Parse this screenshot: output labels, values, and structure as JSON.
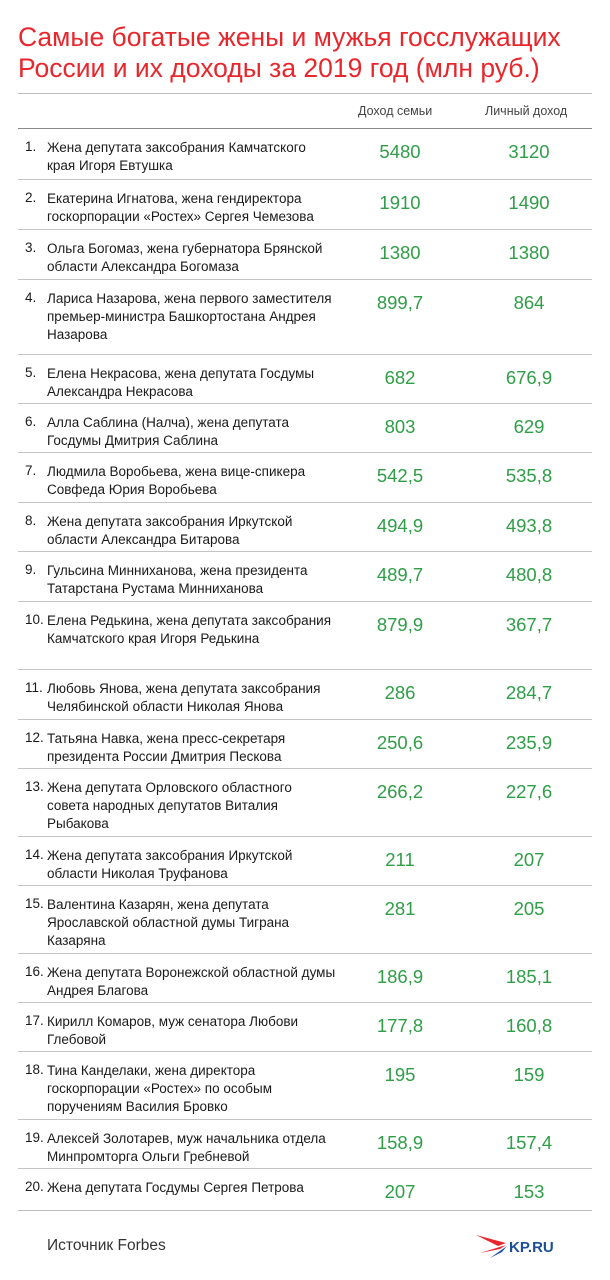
{
  "title": {
    "line1": "Самые богатые жены и мужья госслужащих",
    "line2": "России и их доходы за 2019 год (млн руб.)"
  },
  "columns": {
    "family": "Доход семьи",
    "personal": "Личный доход"
  },
  "source": "Источник Forbes",
  "logo_text": "KP.RU",
  "colors": {
    "title": "#e8272d",
    "values": "#2f9e47",
    "logo_red": "#e8272d",
    "logo_blue": "#1b4d9b"
  },
  "chart_data": {
    "type": "table",
    "title": "Самые богатые жены и мужья госслужащих России и их доходы за 2019 год (млн руб.)",
    "columns": [
      "Доход семьи",
      "Личный доход"
    ],
    "rows": [
      {
        "rank": "1.",
        "name": "Жена депутата заксобрания Камчатского края Игоря Евтушка",
        "family": "5480",
        "personal": "3120"
      },
      {
        "rank": "2.",
        "name": "Екатерина Игнатова, жена гендиректора госкорпорации «Ростех» Сергея Чемезова",
        "family": "1910",
        "personal": "1490"
      },
      {
        "rank": "3.",
        "name": "Ольга Богомаз, жена губернатора Брянской области Александра Богомаза",
        "family": "1380",
        "personal": "1380"
      },
      {
        "rank": "4.",
        "name": "Лариса Назарова, жена первого заместителя премьер-министра Башкортостана Андрея Назарова",
        "family": "899,7",
        "personal": "864"
      },
      {
        "rank": "5.",
        "name": "Елена Некрасова, жена депутата Госдумы Александра Некрасова",
        "family": "682",
        "personal": "676,9"
      },
      {
        "rank": "6.",
        "name": "Алла Саблина (Налча), жена депутата Госдумы Дмитрия Саблина",
        "family": "803",
        "personal": "629"
      },
      {
        "rank": "7.",
        "name": "Людмила Воробьева, жена вице-спикера Совфеда Юрия Воробьева",
        "family": "542,5",
        "personal": "535,8"
      },
      {
        "rank": "8.",
        "name": "Жена депутата заксобрания Иркутской области Александра Битарова",
        "family": "494,9",
        "personal": "493,8"
      },
      {
        "rank": "9.",
        "name": "Гульсина Минниханова, жена президента Татарстана Рустама Минниханова",
        "family": "489,7",
        "personal": "480,8"
      },
      {
        "rank": "10.",
        "name": "Елена Редькина, жена депутата заксобрания Камчатского края Игоря Редькина",
        "family": "879,9",
        "personal": "367,7"
      },
      {
        "rank": "11.",
        "name": "Любовь Янова, жена депутата заксобрания Челябинской области Николая Янова",
        "family": "286",
        "personal": "284,7"
      },
      {
        "rank": "12.",
        "name": "Татьяна Навка, жена пресс-секретаря президента России Дмитрия Пескова",
        "family": "250,6",
        "personal": "235,9"
      },
      {
        "rank": "13.",
        "name": "Жена депутата Орловского областного совета народных депутатов Виталия Рыбакова",
        "family": "266,2",
        "personal": "227,6"
      },
      {
        "rank": "14.",
        "name": "Жена депутата заксобрания Иркутской области Николая Труфанова",
        "family": "211",
        "personal": "207"
      },
      {
        "rank": "15.",
        "name": "Валентина Казарян, жена депутата Ярославской областной думы Тиграна Казаряна",
        "family": "281",
        "personal": "205"
      },
      {
        "rank": "16.",
        "name": "Жена депутата Воронежской областной думы Андрея Благова",
        "family": "186,9",
        "personal": "185,1"
      },
      {
        "rank": "17.",
        "name": "Кирилл Комаров, муж сенатора Любови Глебовой",
        "family": "177,8",
        "personal": "160,8"
      },
      {
        "rank": "18.",
        "name": "Тина Канделаки, жена директора госкорпорации «Ростех» по особым поручениям Василия Бровко",
        "family": "195",
        "personal": "159"
      },
      {
        "rank": "19.",
        "name": "Алексей Золотарев, муж начальника отдела Минпромторга Ольги Гребневой",
        "family": "158,9",
        "personal": "157,4"
      },
      {
        "rank": "20.",
        "name": "Жена депутата Госдумы Сергея Петрова",
        "family": "207",
        "personal": "153"
      }
    ]
  }
}
